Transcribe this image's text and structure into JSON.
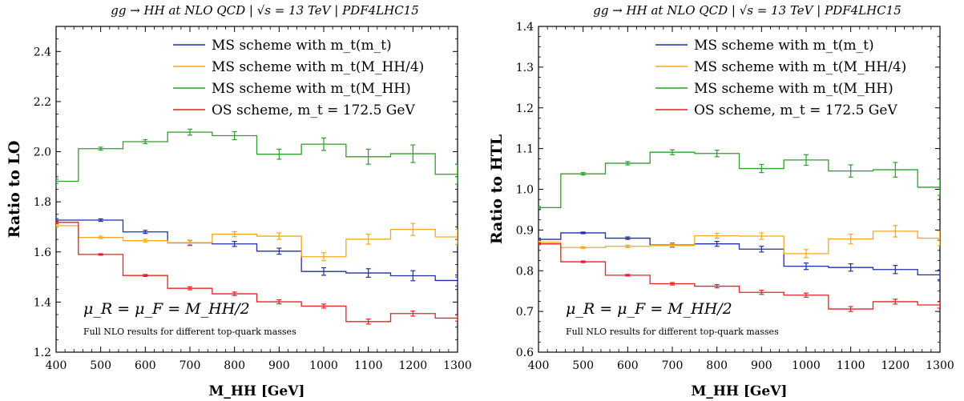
{
  "chart_data": [
    {
      "type": "line",
      "step": true,
      "title": "gg → HH at NLO QCD | √s = 13 TeV | PDF4LHC15",
      "xlabel": "M_HH [GeV]",
      "ylabel": "Ratio to LO",
      "xlim": [
        400,
        1300
      ],
      "ylim": [
        1.2,
        2.5
      ],
      "xticks": [
        400,
        500,
        600,
        700,
        800,
        900,
        1000,
        1100,
        1200,
        1300
      ],
      "yticks": [
        1.2,
        1.4,
        1.6,
        1.8,
        2.0,
        2.2,
        2.4
      ],
      "bin_edges": [
        400,
        450,
        550,
        650,
        750,
        850,
        950,
        1050,
        1150,
        1250,
        1300
      ],
      "bin_centers": [
        400,
        500,
        600,
        700,
        800,
        900,
        1000,
        1100,
        1200,
        1300
      ],
      "grid": false,
      "legend_position": "top-right",
      "annotation": "μ_R = μ_F = M_HH/2",
      "note": "Full NLO results for different top-quark masses",
      "series": [
        {
          "name": "MS scheme with m_t(m_t)",
          "color": "#1f2fa5",
          "values": [
            1.727,
            1.727,
            1.68,
            1.636,
            1.632,
            1.603,
            1.522,
            1.516,
            1.505,
            1.486
          ],
          "errors": [
            0.006,
            0.005,
            0.006,
            0.01,
            0.01,
            0.012,
            0.015,
            0.017,
            0.02,
            0.022
          ]
        },
        {
          "name": "MS scheme with m_t(M_HH/4)",
          "color": "#f5a623",
          "values": [
            1.705,
            1.658,
            1.645,
            1.637,
            1.671,
            1.663,
            1.581,
            1.651,
            1.69,
            1.66
          ],
          "errors": [
            0.006,
            0.005,
            0.006,
            0.008,
            0.01,
            0.013,
            0.016,
            0.02,
            0.024,
            0.03
          ]
        },
        {
          "name": "MS scheme with m_t(M_HH)",
          "color": "#2e9e2e",
          "values": [
            1.882,
            2.012,
            2.04,
            2.078,
            2.064,
            1.99,
            2.03,
            1.98,
            1.992,
            1.91
          ],
          "errors": [
            0.008,
            0.006,
            0.008,
            0.012,
            0.016,
            0.02,
            0.025,
            0.03,
            0.035,
            0.04
          ]
        },
        {
          "name": "OS scheme, m_t = 172.5 GeV",
          "color": "#e02424",
          "values": [
            1.718,
            1.59,
            1.506,
            1.455,
            1.433,
            1.401,
            1.384,
            1.322,
            1.354,
            1.336
          ],
          "errors": [
            0.005,
            0.003,
            0.004,
            0.006,
            0.007,
            0.008,
            0.008,
            0.01,
            0.01,
            0.012
          ]
        }
      ]
    },
    {
      "type": "line",
      "step": true,
      "title": "gg → HH at NLO QCD | √s = 13 TeV | PDF4LHC15",
      "xlabel": "M_HH [GeV]",
      "ylabel": "Ratio to HTL",
      "xlim": [
        400,
        1300
      ],
      "ylim": [
        0.6,
        1.4
      ],
      "xticks": [
        400,
        500,
        600,
        700,
        800,
        900,
        1000,
        1100,
        1200,
        1300
      ],
      "yticks": [
        0.6,
        0.7,
        0.8,
        0.9,
        1.0,
        1.1,
        1.2,
        1.3,
        1.4
      ],
      "bin_edges": [
        400,
        450,
        550,
        650,
        750,
        850,
        950,
        1050,
        1150,
        1250,
        1300
      ],
      "bin_centers": [
        400,
        500,
        600,
        700,
        800,
        900,
        1000,
        1100,
        1200,
        1300
      ],
      "grid": false,
      "legend_position": "top-right",
      "annotation": "μ_R = μ_F = M_HH/2",
      "note": "Full NLO results for different top-quark masses",
      "series": [
        {
          "name": "MS scheme with m_t(m_t)",
          "color": "#1f2fa5",
          "values": [
            0.877,
            0.893,
            0.88,
            0.863,
            0.866,
            0.853,
            0.811,
            0.808,
            0.803,
            0.79
          ],
          "errors": [
            0.003,
            0.002,
            0.003,
            0.005,
            0.006,
            0.007,
            0.008,
            0.009,
            0.01,
            0.012
          ]
        },
        {
          "name": "MS scheme with m_t(M_HH/4)",
          "color": "#f5a623",
          "values": [
            0.87,
            0.857,
            0.86,
            0.862,
            0.886,
            0.885,
            0.842,
            0.878,
            0.897,
            0.88
          ],
          "errors": [
            0.003,
            0.002,
            0.003,
            0.005,
            0.006,
            0.008,
            0.01,
            0.012,
            0.014,
            0.018
          ]
        },
        {
          "name": "MS scheme with m_t(M_HH)",
          "color": "#2e9e2e",
          "values": [
            0.955,
            1.038,
            1.064,
            1.091,
            1.088,
            1.051,
            1.072,
            1.045,
            1.048,
            1.005
          ],
          "errors": [
            0.003,
            0.003,
            0.004,
            0.006,
            0.008,
            0.01,
            0.013,
            0.015,
            0.018,
            0.02
          ]
        },
        {
          "name": "OS scheme, m_t = 172.5 GeV",
          "color": "#e02424",
          "values": [
            0.866,
            0.822,
            0.789,
            0.768,
            0.762,
            0.747,
            0.74,
            0.706,
            0.724,
            0.716
          ],
          "errors": [
            0.002,
            0.002,
            0.002,
            0.003,
            0.004,
            0.005,
            0.005,
            0.006,
            0.006,
            0.008
          ]
        }
      ]
    }
  ]
}
